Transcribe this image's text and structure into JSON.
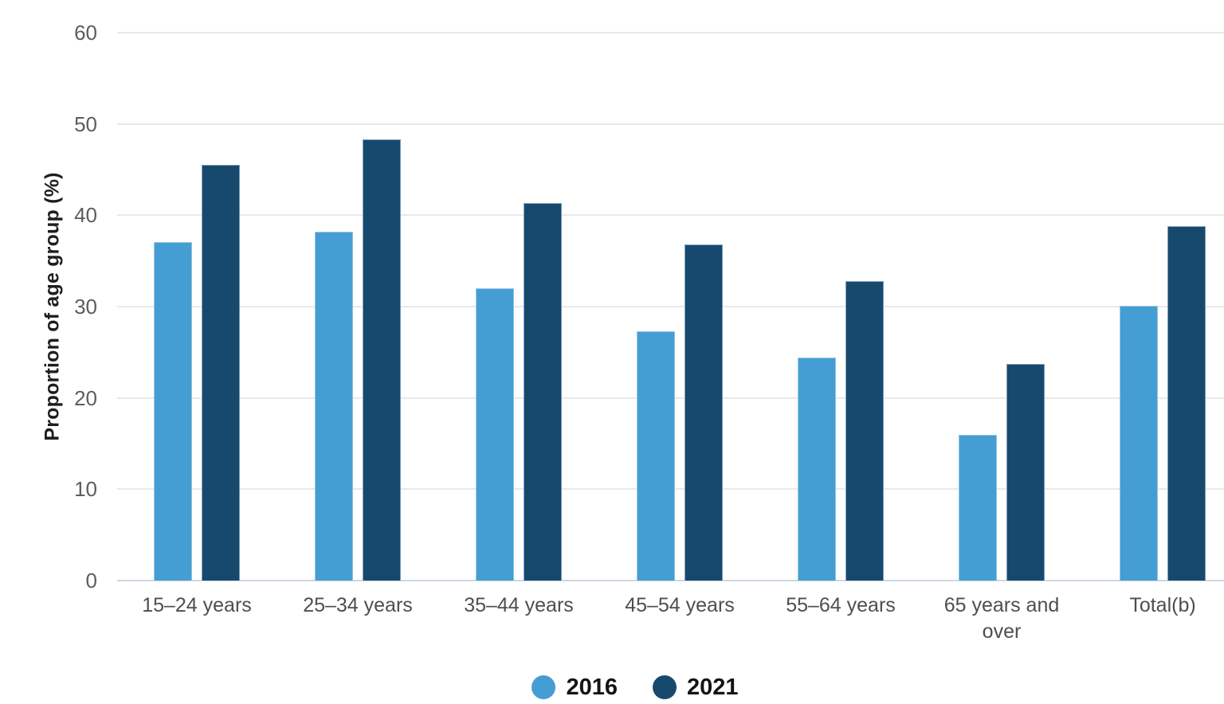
{
  "page": {
    "background": "#ffffff"
  },
  "chart_data": {
    "type": "bar",
    "title": "",
    "ylabel": "Proportion of age group (%)",
    "xlabel": "",
    "categories": [
      "15–24 years",
      "25–34 years",
      "35–44 years",
      "45–54 years",
      "55–64 years",
      "65 years and over",
      "Total(b)"
    ],
    "series": [
      {
        "name": "2016",
        "color": "#459ED3",
        "values": [
          37.1,
          38.2,
          32.0,
          27.3,
          24.4,
          16.0,
          30.1
        ]
      },
      {
        "name": "2021",
        "color": "#17496E",
        "values": [
          45.5,
          48.3,
          41.3,
          36.8,
          32.8,
          23.7,
          38.8
        ]
      }
    ],
    "ylim": [
      0,
      60
    ],
    "yticks": [
      0,
      10,
      20,
      30,
      40,
      50,
      60
    ],
    "grid": "horizontal",
    "legend_position": "bottom"
  },
  "palette": {
    "gridline": "#e9e9e9",
    "axis_baseline": "#ccd7e2",
    "tick_text": "#5d5d5d",
    "category_text": "#4e4e4e",
    "axis_title_text": "#1e1e1e",
    "legend_text": "#141414"
  }
}
